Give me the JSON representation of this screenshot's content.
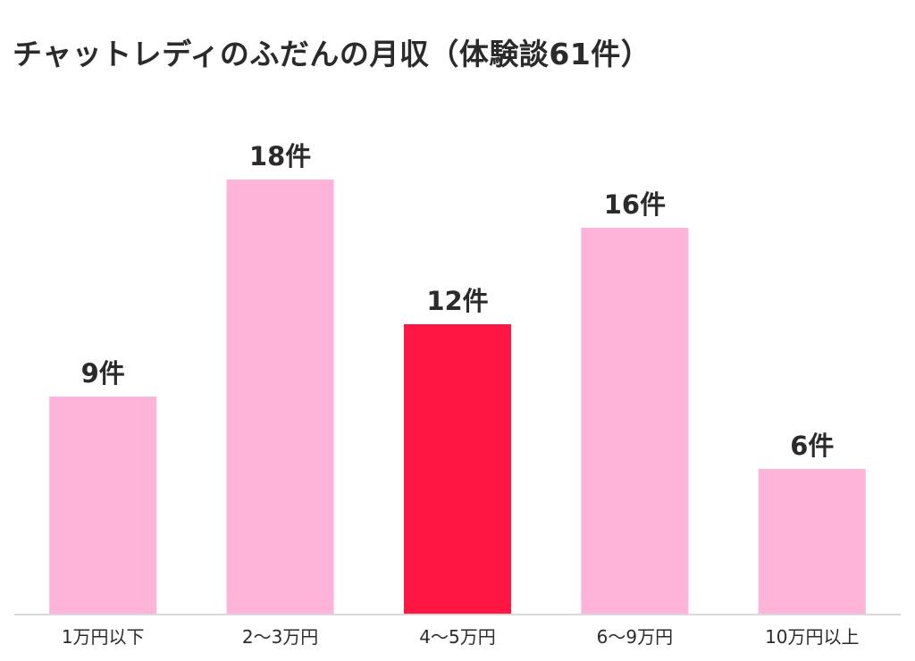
{
  "chart_data": {
    "type": "bar",
    "title": "チャットレディのふだんの月収（体験談61件）",
    "xlabel": "",
    "ylabel": "",
    "categories": [
      "1万円以下",
      "2〜3万円",
      "4〜5万円",
      "6〜9万円",
      "10万円以上"
    ],
    "values": [
      9,
      18,
      12,
      16,
      6
    ],
    "value_suffix": "件",
    "ylim": [
      0,
      18
    ],
    "grid": false,
    "legend": "none",
    "bar_colors": [
      "#fdb4d8",
      "#fdb4d8",
      "#ff1744",
      "#fdb4d8",
      "#fdb4d8"
    ],
    "highlight_index": 2,
    "axis_color": "#d8d8d8"
  }
}
